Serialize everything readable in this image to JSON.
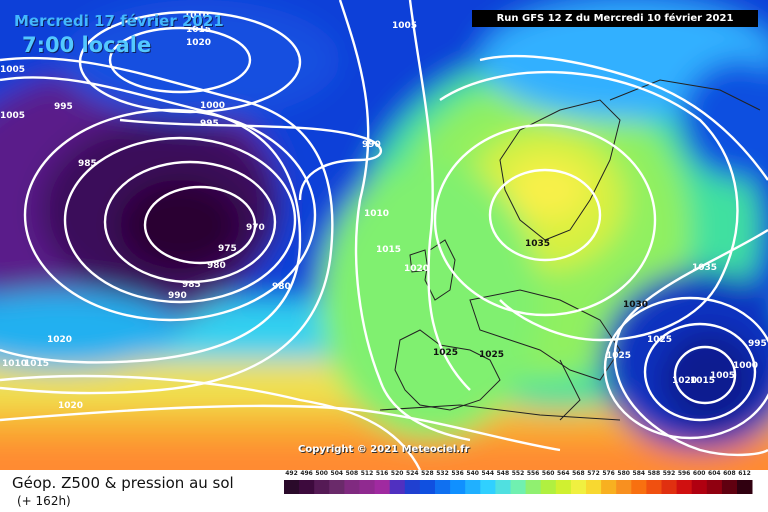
{
  "map": {
    "run_info": "Run GFS 12 Z du Mercredi 10 février 2021",
    "valid_date": "Mercredi 17 février 2021",
    "valid_time": "7:00 locale",
    "copyright": "Copyright © 2021 Meteociel.fr",
    "isobar_labels": [
      "1010",
      "1015",
      "1020",
      "1005",
      "1000",
      "995",
      "1005",
      "995",
      "985",
      "975",
      "980",
      "990",
      "970",
      "985",
      "980",
      "990",
      "1010",
      "1015",
      "1020",
      "1025",
      "1025",
      "1035",
      "1030",
      "1025",
      "1025",
      "1020",
      "1015",
      "1005",
      "1000",
      "995",
      "1035",
      "1005",
      "1020",
      "1020",
      "1010",
      "1015"
    ],
    "colors": {
      "low": "#3a003c",
      "high": "#f8f04a",
      "warm": "#ff8a30",
      "contour": "#ffffff"
    }
  },
  "footer": {
    "title": "Géop. Z500 & pression au sol",
    "subtitle": "(+ 162h)"
  },
  "scale": {
    "labels": [
      "492",
      "496",
      "500",
      "504",
      "508",
      "512",
      "516",
      "520",
      "524",
      "528",
      "532",
      "536",
      "540",
      "544",
      "548",
      "552",
      "556",
      "560",
      "564",
      "568",
      "572",
      "576",
      "580",
      "584",
      "588",
      "592",
      "596",
      "600",
      "604",
      "608",
      "612"
    ],
    "colors": [
      "#2a0a2a",
      "#3d0a3d",
      "#551a55",
      "#6a2a6a",
      "#802a80",
      "#902a90",
      "#a02aa0",
      "#5030c0",
      "#2040d0",
      "#1050e0",
      "#1070f0",
      "#1090ff",
      "#20b0ff",
      "#30d0ff",
      "#50e0e0",
      "#70f0b0",
      "#90f070",
      "#b0f040",
      "#d0f030",
      "#f0f040",
      "#f8d830",
      "#f8b020",
      "#f89020",
      "#f87010",
      "#f05010",
      "#e03010",
      "#d01010",
      "#b00010",
      "#900010",
      "#600010",
      "#300010"
    ]
  }
}
